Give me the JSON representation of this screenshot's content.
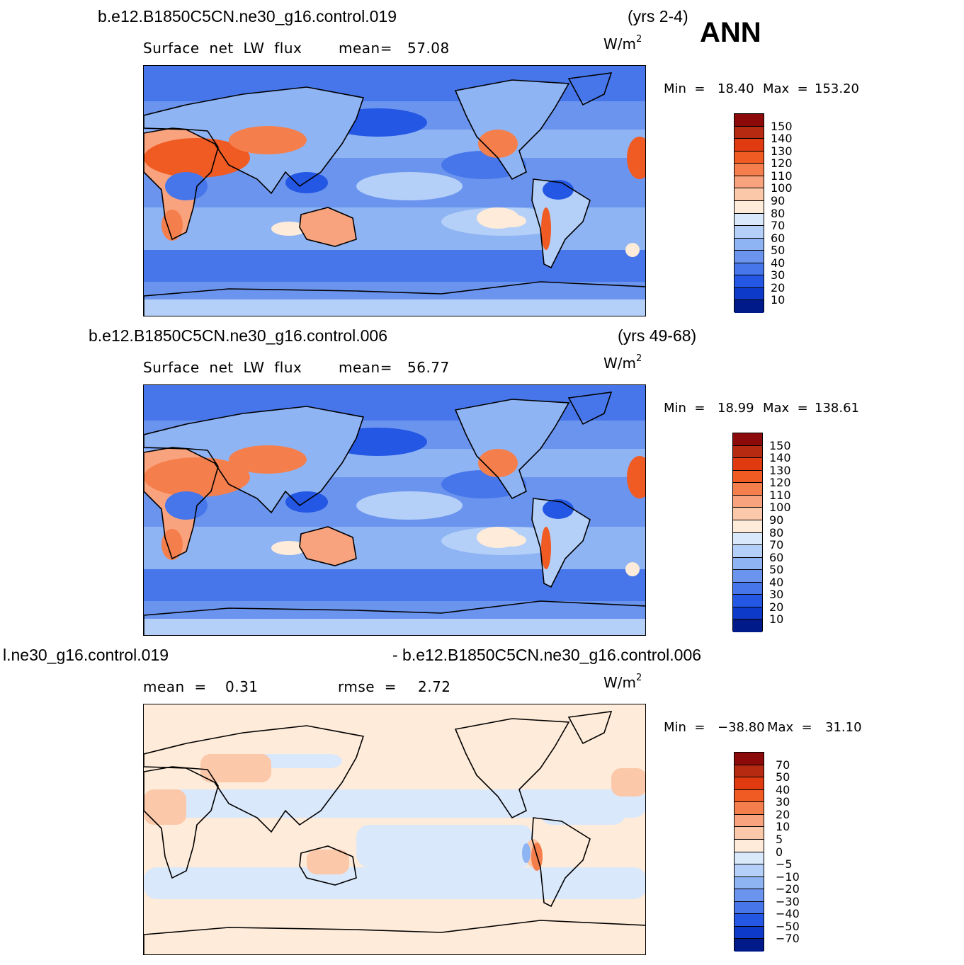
{
  "season": "ANN",
  "units_base": "W/m",
  "units_exp": "2",
  "panels": [
    {
      "case": "b.e12.B1850C5CN.ne30_g16.control.019",
      "years": "(yrs 2-4)",
      "variable": "Surface  net  LW  flux",
      "mean_label": "mean=",
      "mean_value": "57.08",
      "min_label": "Min  =",
      "min_value": "18.40",
      "max_label": "Max  =",
      "max_value": "153.20",
      "colorbar": {
        "labels": [
          "150",
          "140",
          "130",
          "120",
          "110",
          "100",
          "90",
          "80",
          "70",
          "60",
          "50",
          "40",
          "30",
          "20",
          "10"
        ],
        "colors": [
          "#8c0a0a",
          "#b52a10",
          "#e03b10",
          "#f05a23",
          "#f57f4c",
          "#f9a37e",
          "#fcc8aa",
          "#feebd9",
          "#d9e8fb",
          "#b5d0f8",
          "#8fb4f4",
          "#6b94ee",
          "#4676ea",
          "#2457e4",
          "#0d3ac8",
          "#001a8a"
        ]
      }
    },
    {
      "case": "b.e12.B1850C5CN.ne30_g16.control.006",
      "years": "(yrs 49-68)",
      "variable": "Surface  net  LW  flux",
      "mean_label": "mean=",
      "mean_value": "56.77",
      "min_label": "Min  =",
      "min_value": "18.99",
      "max_label": "Max  =",
      "max_value": "138.61",
      "colorbar": {
        "labels": [
          "150",
          "140",
          "130",
          "120",
          "110",
          "100",
          "90",
          "80",
          "70",
          "60",
          "50",
          "40",
          "30",
          "20",
          "10"
        ],
        "colors": [
          "#8c0a0a",
          "#b52a10",
          "#e03b10",
          "#f05a23",
          "#f57f4c",
          "#f9a37e",
          "#fcc8aa",
          "#feebd9",
          "#d9e8fb",
          "#b5d0f8",
          "#8fb4f4",
          "#6b94ee",
          "#4676ea",
          "#2457e4",
          "#0d3ac8",
          "#001a8a"
        ]
      }
    },
    {
      "case_left": "l.ne30_g16.control.019",
      "case_right": "- b.e12.B1850C5CN.ne30_g16.control.006",
      "mean_label": "mean  =",
      "mean_value": "0.31",
      "rmse_label": "rmse  =",
      "rmse_value": "2.72",
      "min_label": "Min  =",
      "min_value": "−38.80",
      "max_label": "Max  =",
      "max_value": "31.10",
      "colorbar": {
        "labels": [
          "70",
          "50",
          "40",
          "30",
          "20",
          "10",
          "5",
          "0",
          "−5",
          "−10",
          "−20",
          "−30",
          "−40",
          "−50",
          "−70"
        ],
        "colors": [
          "#8c0a0a",
          "#b52a10",
          "#e03b10",
          "#f05a23",
          "#f57f4c",
          "#f9a37e",
          "#fcc8aa",
          "#feebd9",
          "#d9e8fb",
          "#b5d0f8",
          "#8fb4f4",
          "#6b94ee",
          "#4676ea",
          "#2457e4",
          "#0d3ac8",
          "#001a8a"
        ]
      }
    }
  ]
}
